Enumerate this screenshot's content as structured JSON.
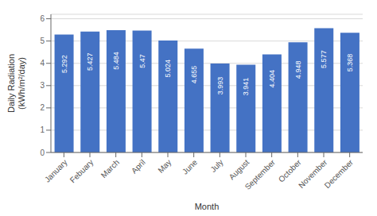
{
  "chart_data": {
    "type": "bar",
    "categories": [
      "January",
      "Febuary",
      "March",
      "April",
      "May",
      "June",
      "July",
      "August",
      "September",
      "October",
      "November",
      "December"
    ],
    "values": [
      5.292,
      5.427,
      5.484,
      5.47,
      5.024,
      4.655,
      3.993,
      3.941,
      4.404,
      4.948,
      5.577,
      5.368
    ],
    "color": "#4472c4",
    "xlabel": "Month",
    "ylabel": "Daily Radiation\n(kWh/m²/day)",
    "ylim": [
      0,
      6.2
    ],
    "yticks": [
      0,
      1,
      2,
      3,
      4,
      5,
      6
    ],
    "grid": true,
    "data_labels": true
  }
}
